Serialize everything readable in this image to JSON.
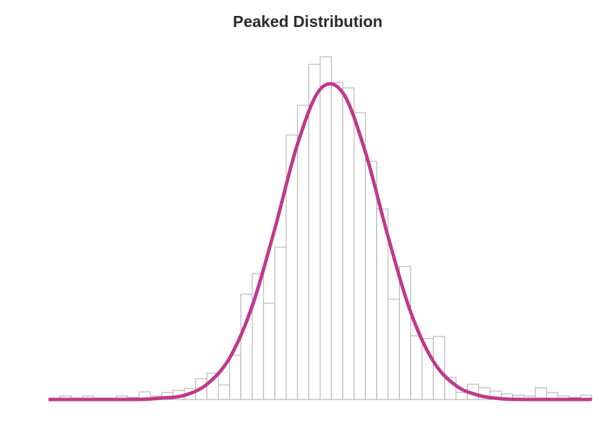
{
  "chart_data": {
    "type": "histogram",
    "title": "Peaked Distribution",
    "bins": [
      0,
      1,
      2,
      3,
      4,
      5,
      6,
      7,
      8,
      9,
      10,
      11,
      12,
      13,
      14,
      15,
      16,
      17,
      18,
      19,
      20,
      21,
      22,
      23,
      24,
      25,
      26,
      27,
      28,
      29,
      30,
      31,
      32,
      33,
      34,
      35,
      36,
      37,
      38,
      39,
      40,
      41,
      42,
      43,
      44,
      45,
      46,
      47,
      48
    ],
    "counts": [
      0,
      5,
      0,
      5,
      0,
      0,
      5,
      3,
      11,
      5,
      10,
      13,
      16,
      30,
      38,
      21,
      64,
      152,
      182,
      139,
      220,
      382,
      425,
      484,
      495,
      458,
      450,
      414,
      344,
      275,
      145,
      192,
      92,
      88,
      91,
      32,
      10,
      22,
      17,
      12,
      8,
      6,
      5,
      17,
      10,
      5,
      3,
      6
    ],
    "bar_color": "#ffffff",
    "bar_edge_color": "#aaaaaa",
    "curve": {
      "color": "#c0398a",
      "x": [
        0,
        2,
        4,
        6,
        8,
        10,
        12,
        14,
        16,
        18,
        20,
        22,
        24,
        26,
        28,
        30,
        32,
        34,
        36,
        38,
        40,
        42,
        44,
        46,
        48
      ],
      "values": [
        0,
        0,
        0,
        0,
        0,
        2,
        6,
        22,
        60,
        135,
        247,
        369,
        448,
        443,
        357,
        235,
        126,
        55,
        20,
        6,
        1,
        0,
        0,
        0,
        0
      ]
    },
    "xlim": [
      0,
      48
    ],
    "ylim": [
      0,
      500
    ]
  }
}
